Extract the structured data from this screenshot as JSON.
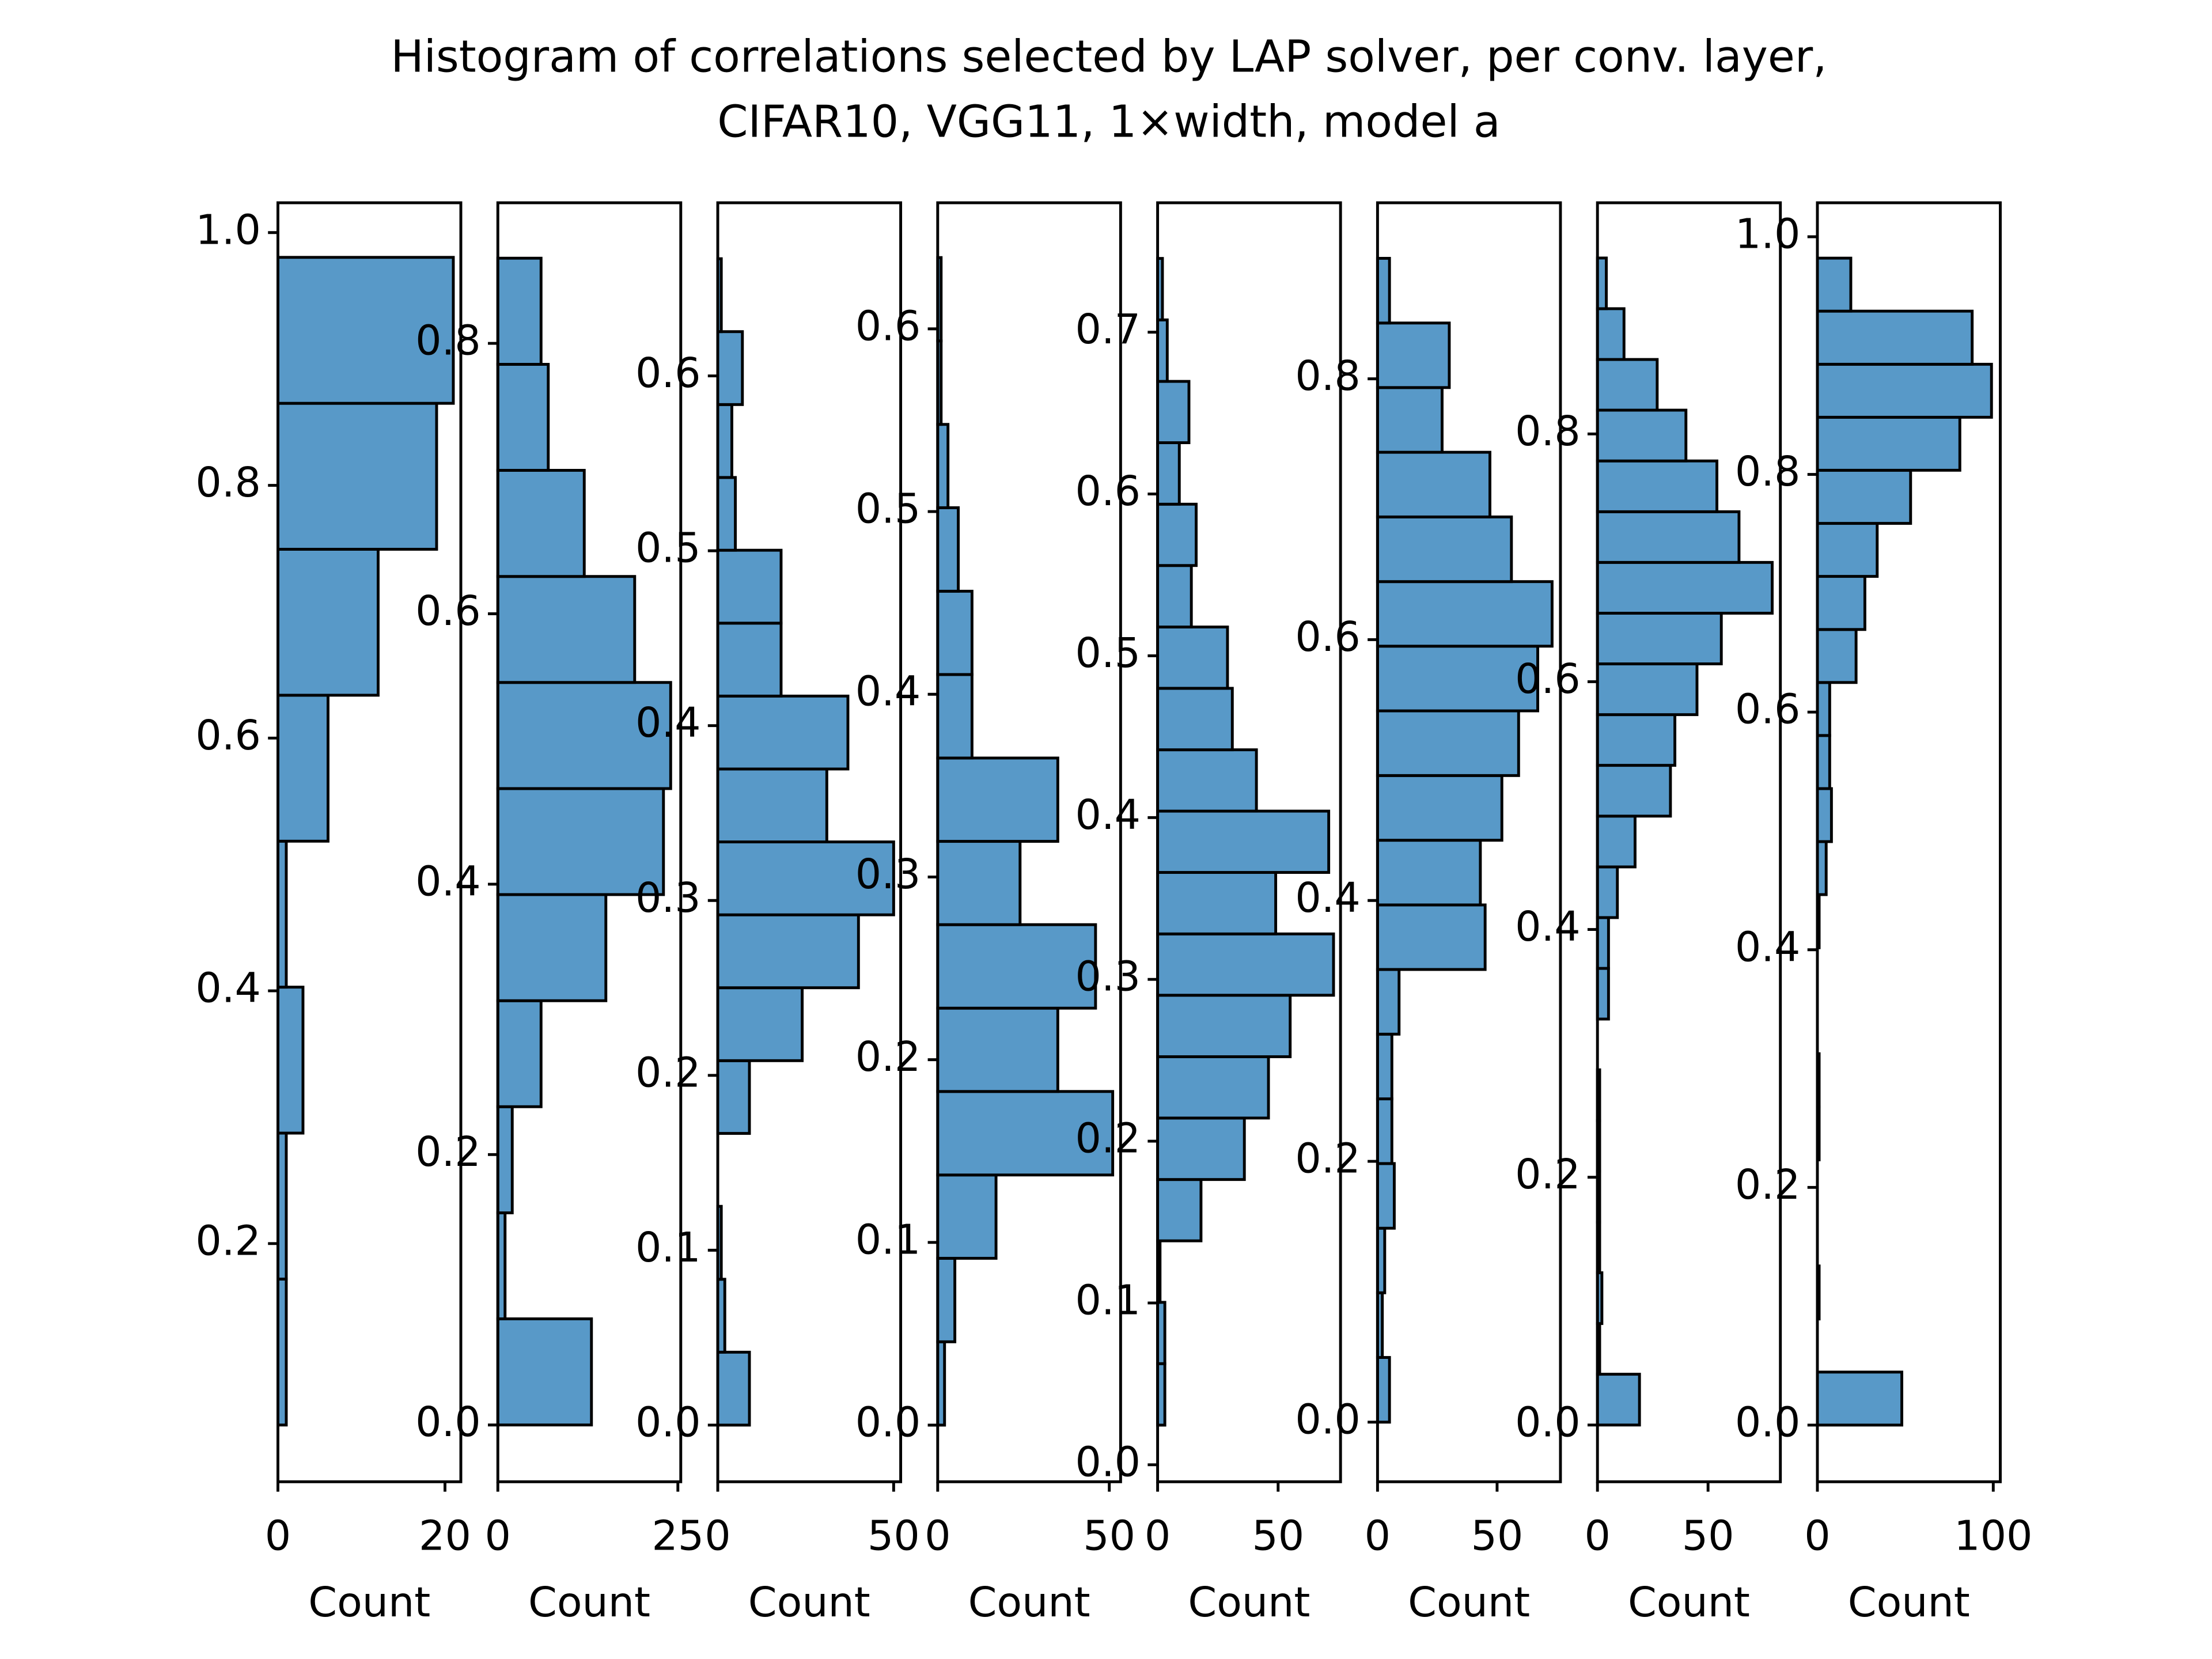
{
  "title": [
    "Histogram of correlations selected by LAP solver, per conv. layer,",
    "CIFAR10, VGG11, 1×width, model a"
  ],
  "chart_data": [
    {
      "type": "histogram",
      "orientation": "horizontal",
      "xlabel": "Count",
      "color": "#5899c8",
      "edgecolor": "#000000",
      "bins": [
        0.0564,
        0.1719,
        0.2874,
        0.4029,
        0.5184,
        0.6339,
        0.7494,
        0.8649,
        0.9804
      ],
      "values": [
        1,
        1,
        3,
        1,
        6,
        12,
        19,
        21
      ],
      "xlim": [
        0,
        21.9
      ],
      "xticks": [
        0,
        20
      ],
      "ylim": [
        0.0115,
        1.0236
      ],
      "yticks": [
        0.2,
        0.4,
        0.6,
        0.8,
        {
          "value": 1,
          "label": "1.0"
        }
      ]
    },
    {
      "type": "histogram",
      "orientation": "horizontal",
      "xlabel": "Count",
      "color": "#5899c8",
      "edgecolor": "#000000",
      "bins": [
        0,
        0.0785,
        0.1569,
        0.2354,
        0.3138,
        0.3923,
        0.4707,
        0.5492,
        0.6276,
        0.7061,
        0.7845,
        0.863
      ],
      "values": [
        13,
        1,
        2,
        6,
        15,
        23,
        24,
        19,
        12,
        7,
        6
      ],
      "xlim": [
        0,
        25.4
      ],
      "xticks": [
        0,
        25
      ],
      "ylim": [
        -0.042,
        0.904
      ],
      "yticks": [
        {
          "value": 0,
          "label": "0.0"
        },
        0.2,
        0.4,
        0.6,
        0.8
      ]
    },
    {
      "type": "histogram",
      "orientation": "horizontal",
      "xlabel": "Count",
      "color": "#5899c8",
      "edgecolor": "#000000",
      "bins": [
        0,
        0.0417,
        0.0834,
        0.1251,
        0.1668,
        0.2084,
        0.2501,
        0.2918,
        0.3335,
        0.3752,
        0.4169,
        0.4586,
        0.5003,
        0.5419,
        0.5836,
        0.6253,
        0.667
      ],
      "values": [
        9,
        2,
        1,
        0,
        9,
        24,
        40,
        50,
        31,
        37,
        18,
        18,
        5,
        4,
        7,
        1
      ],
      "xlim": [
        0,
        52
      ],
      "xticks": [
        0,
        50
      ],
      "ylim": [
        -0.0324,
        0.699
      ],
      "yticks": [
        {
          "value": 0,
          "label": "0.0"
        },
        0.1,
        0.2,
        0.3,
        0.4,
        0.5,
        0.6
      ]
    },
    {
      "type": "histogram",
      "orientation": "horizontal",
      "xlabel": "Count",
      "color": "#5899c8",
      "edgecolor": "#000000",
      "bins": [
        0,
        0.0456,
        0.0913,
        0.1369,
        0.1826,
        0.2282,
        0.2739,
        0.3195,
        0.3651,
        0.4108,
        0.4564,
        0.5021,
        0.5477,
        0.5934,
        0.639
      ],
      "values": [
        2,
        5,
        17,
        51,
        35,
        46,
        24,
        35,
        10,
        10,
        6,
        3,
        1,
        1
      ],
      "xlim": [
        0,
        53.3
      ],
      "xticks": [
        0,
        50
      ],
      "ylim": [
        -0.031,
        0.669
      ],
      "yticks": [
        {
          "value": 0,
          "label": "0.0"
        },
        0.1,
        0.2,
        0.3,
        0.4,
        0.5,
        0.6
      ]
    },
    {
      "type": "histogram",
      "orientation": "horizontal",
      "xlabel": "Count",
      "color": "#5899c8",
      "edgecolor": "#000000",
      "bins": [
        0.0245,
        0.0625,
        0.1004,
        0.1384,
        0.1763,
        0.2143,
        0.2522,
        0.2902,
        0.3281,
        0.3661,
        0.404,
        0.4419,
        0.4799,
        0.5178,
        0.5558,
        0.5937,
        0.6317,
        0.6696,
        0.7076,
        0.7456
      ],
      "values": [
        3,
        3,
        1,
        18,
        36,
        46,
        55,
        73,
        49,
        71,
        41,
        31,
        29,
        14,
        16,
        9,
        13,
        4,
        2
      ],
      "xlim": [
        0,
        75.9
      ],
      "xticks": [
        0,
        50
      ],
      "ylim": [
        -0.0105,
        0.78
      ],
      "yticks": [
        {
          "value": 0,
          "label": "0.0"
        },
        0.1,
        0.2,
        0.3,
        0.4,
        0.5,
        0.6,
        0.7
      ]
    },
    {
      "type": "histogram",
      "orientation": "horizontal",
      "xlabel": "Count",
      "color": "#5899c8",
      "edgecolor": "#000000",
      "bins": [
        0,
        0.0496,
        0.0992,
        0.1487,
        0.1983,
        0.2479,
        0.2975,
        0.3471,
        0.3966,
        0.4462,
        0.4958,
        0.5454,
        0.595,
        0.6445,
        0.6941,
        0.7437,
        0.7933,
        0.8428,
        0.8924
      ],
      "values": [
        5,
        2,
        3,
        7,
        6,
        6,
        9,
        45,
        43,
        52,
        59,
        67,
        73,
        56,
        47,
        27,
        30,
        5
      ],
      "xlim": [
        0,
        76.5
      ],
      "xticks": [
        0,
        50
      ],
      "ylim": [
        -0.0457,
        0.935
      ],
      "yticks": [
        {
          "value": 0,
          "label": "0.0"
        },
        0.2,
        0.4,
        0.6,
        0.8
      ]
    },
    {
      "type": "histogram",
      "orientation": "horizontal",
      "xlabel": "Count",
      "color": "#5899c8",
      "edgecolor": "#000000",
      "bins": [
        0,
        0.041,
        0.0819,
        0.1229,
        0.1638,
        0.2048,
        0.2457,
        0.2867,
        0.3277,
        0.3686,
        0.4096,
        0.4505,
        0.4915,
        0.5325,
        0.5734,
        0.6144,
        0.6553,
        0.6963,
        0.7372,
        0.7782,
        0.8192,
        0.8601,
        0.9011,
        0.942
      ],
      "values": [
        19,
        1,
        2,
        1,
        1,
        1,
        1,
        0,
        5,
        5,
        9,
        17,
        33,
        35,
        45,
        56,
        79,
        64,
        54,
        40,
        27,
        12,
        4
      ],
      "xlim": [
        0,
        82.7
      ],
      "xticks": [
        0,
        50
      ],
      "ylim": [
        -0.0458,
        0.9866
      ],
      "yticks": [
        {
          "value": 0,
          "label": "0.0"
        },
        0.2,
        0.4,
        0.6,
        0.8
      ]
    },
    {
      "type": "histogram",
      "orientation": "horizontal",
      "xlabel": "Count",
      "color": "#5899c8",
      "edgecolor": "#000000",
      "bins": [
        0,
        0.0446,
        0.0893,
        0.1339,
        0.1785,
        0.2232,
        0.2678,
        0.3125,
        0.3571,
        0.4017,
        0.4464,
        0.491,
        0.5356,
        0.5803,
        0.6249,
        0.6695,
        0.7142,
        0.7588,
        0.8035,
        0.8481,
        0.8927,
        0.9374,
        0.982
      ],
      "values": [
        48,
        0,
        1,
        0,
        0,
        1,
        1,
        0,
        0,
        1,
        5,
        8,
        7,
        7,
        22,
        27,
        34,
        53,
        81,
        99,
        88,
        19
      ],
      "xlim": [
        0,
        104
      ],
      "xticks": [
        0,
        100
      ],
      "ylim": [
        -0.0477,
        1.0286
      ],
      "yticks": [
        {
          "value": 0,
          "label": "0.0"
        },
        0.2,
        0.4,
        {
          "value": 0.6,
          "label": "0.6"
        },
        0.8,
        {
          "value": 1,
          "label": "1.0"
        }
      ]
    }
  ]
}
